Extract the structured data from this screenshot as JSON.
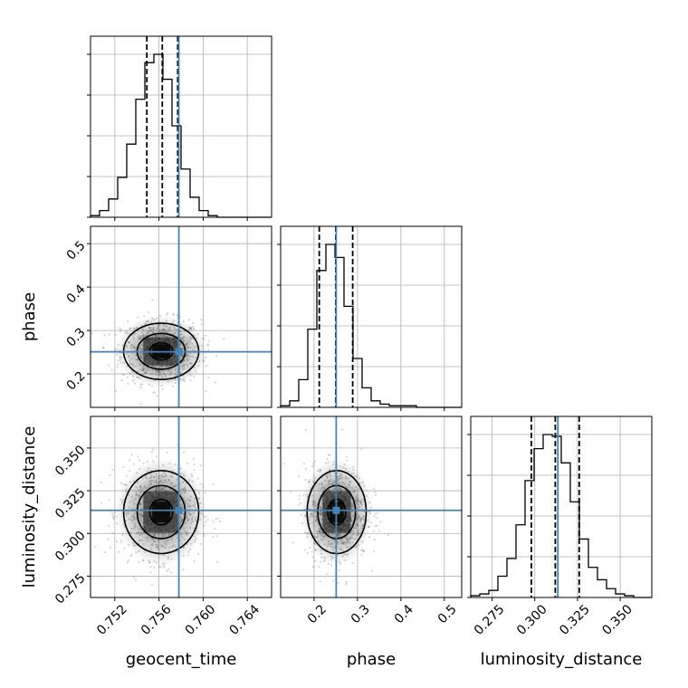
{
  "chart_data": {
    "type": "corner",
    "parameters": [
      "geocent_time",
      "phase",
      "luminosity_distance"
    ],
    "truths": [
      0.7578,
      0.251,
      0.3135
    ],
    "truth_color": "#4682b4",
    "ranges": {
      "geocent_time": [
        0.7498,
        0.7662
      ],
      "phase": [
        0.123,
        0.54
      ],
      "luminosity_distance": [
        0.2625,
        0.3685
      ]
    },
    "ticks": {
      "geocent_time": [
        0.752,
        0.756,
        0.76,
        0.764
      ],
      "phase": [
        0.2,
        0.3,
        0.4,
        0.5
      ],
      "luminosity_distance": [
        0.275,
        0.3,
        0.325,
        0.35
      ]
    },
    "tick_labels": {
      "geocent_time": [
        "0.752",
        "0.756",
        "0.760",
        "0.764"
      ],
      "phase": [
        "0.2",
        "0.3",
        "0.4",
        "0.5"
      ],
      "luminosity_distance": [
        "0.275",
        "0.300",
        "0.325",
        "0.350"
      ]
    },
    "quantiles": {
      "geocent_time": [
        0.7549,
        0.7563,
        0.7577
      ],
      "phase": [
        0.212,
        0.25,
        0.289
      ],
      "luminosity_distance": [
        0.298,
        0.312,
        0.326
      ]
    },
    "histograms": {
      "geocent_time": [
        1,
        4,
        11,
        24,
        44,
        71,
        93,
        98,
        83,
        55,
        29,
        12,
        4,
        1,
        0,
        0,
        0,
        0,
        0,
        0
      ],
      "phase": [
        1,
        4,
        17,
        48,
        84,
        100,
        92,
        62,
        30,
        12,
        4,
        2,
        1,
        1,
        1,
        0,
        0,
        0,
        0,
        0
      ],
      "luminosity_distance": [
        1,
        2,
        4,
        12,
        22,
        41,
        66,
        84,
        92,
        91,
        76,
        54,
        33,
        17,
        10,
        5,
        2,
        1,
        0,
        0
      ]
    },
    "grid": true
  }
}
